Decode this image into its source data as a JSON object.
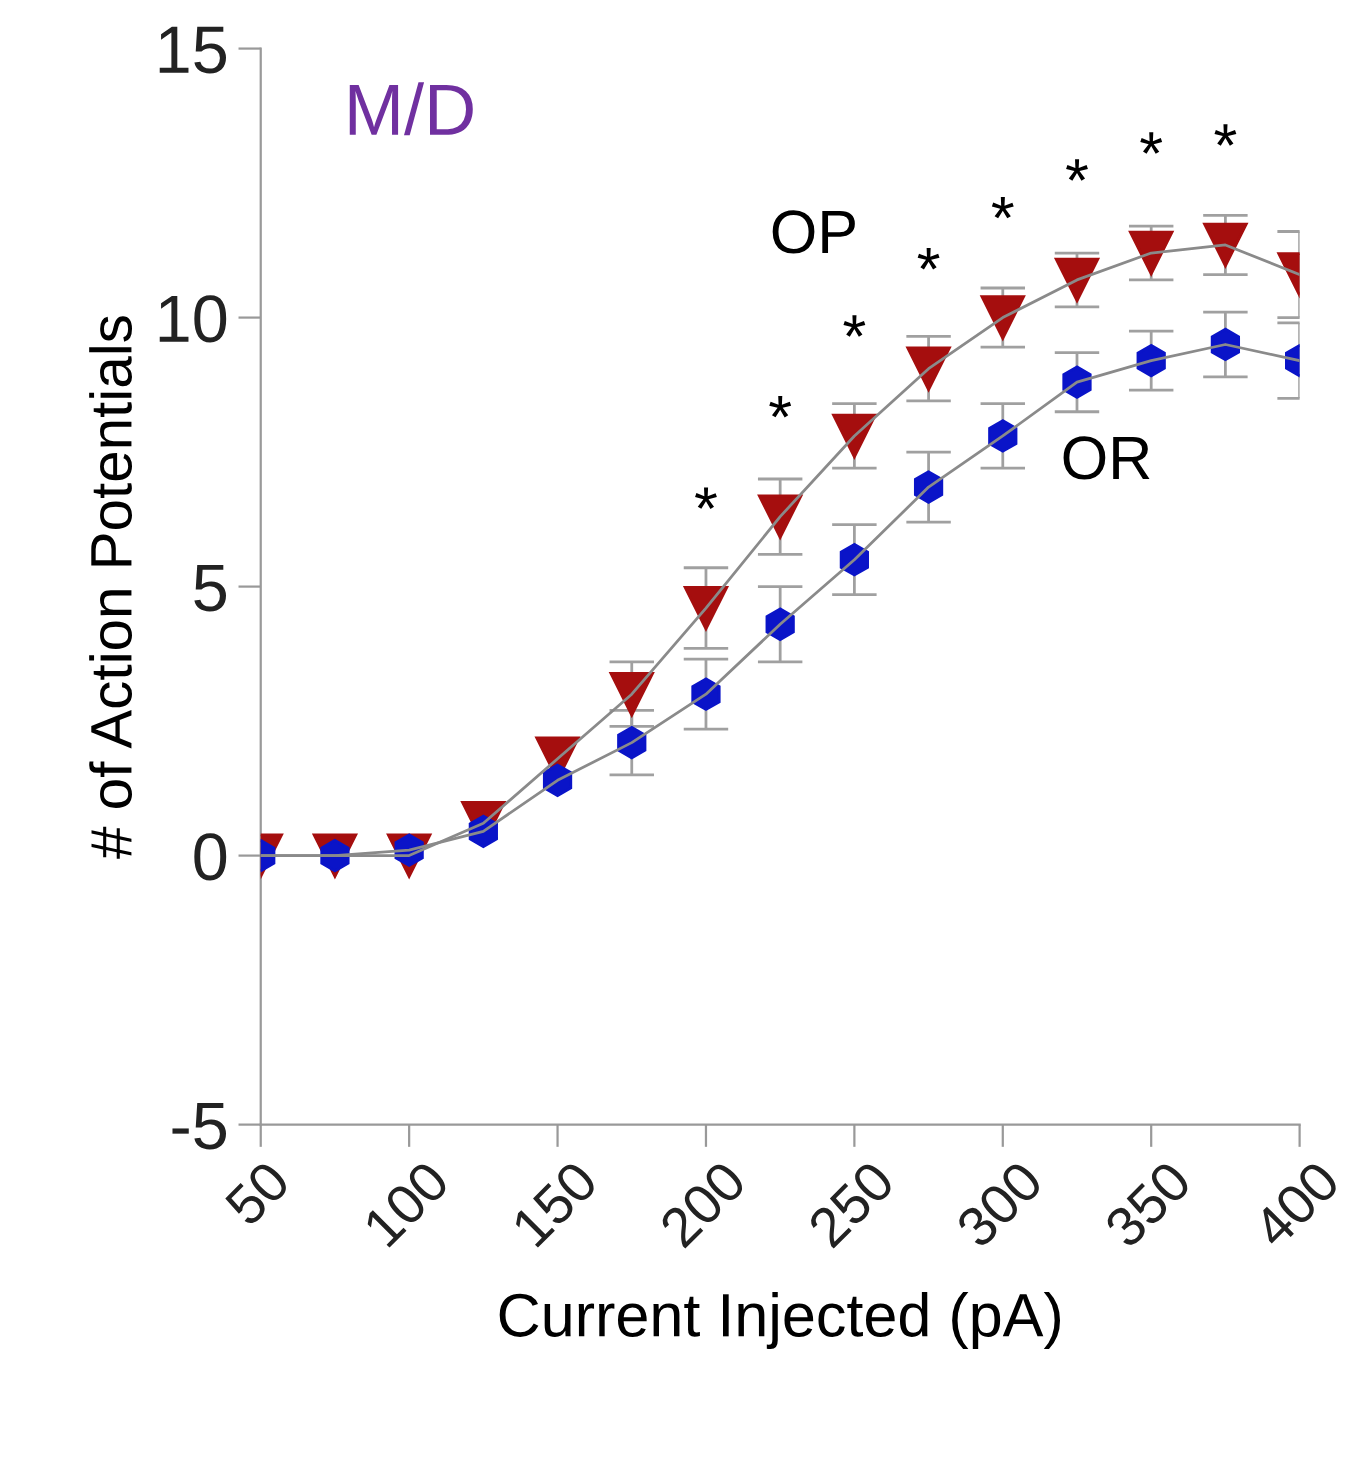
{
  "chart_data": {
    "type": "line",
    "xlabel": "Current Injected (pA)",
    "ylabel": "# of Action Potentials",
    "x": [
      50,
      75,
      100,
      125,
      150,
      175,
      200,
      225,
      250,
      275,
      300,
      325,
      350,
      375,
      400
    ],
    "xlim": [
      50,
      400
    ],
    "xticks": [
      50,
      100,
      150,
      200,
      250,
      300,
      350,
      400
    ],
    "ylim": [
      -5,
      15
    ],
    "yticks": [
      -5,
      0,
      5,
      10,
      15
    ],
    "series": [
      {
        "name": "OP",
        "color": "#a50e0e",
        "marker": "triangle",
        "values": [
          0,
          0,
          0,
          0.6,
          1.8,
          3.0,
          4.6,
          6.3,
          7.8,
          9.05,
          10.0,
          10.7,
          11.2,
          11.35,
          10.8
        ],
        "errors": [
          null,
          null,
          null,
          null,
          null,
          0.6,
          0.75,
          0.7,
          0.6,
          0.6,
          0.55,
          0.5,
          0.5,
          0.55,
          0.8
        ]
      },
      {
        "name": "OR",
        "color": "#0a14c8",
        "marker": "circle",
        "values": [
          0,
          0,
          0.1,
          0.45,
          1.4,
          2.1,
          3.0,
          4.3,
          5.5,
          6.85,
          7.8,
          8.8,
          9.2,
          9.5,
          9.2
        ],
        "errors": [
          null,
          null,
          null,
          null,
          null,
          0.6,
          0.65,
          0.7,
          0.65,
          0.65,
          0.6,
          0.55,
          0.55,
          0.6,
          0.7
        ]
      }
    ],
    "annotations": [
      {
        "text": "M/D"
      },
      {
        "text": "*",
        "x": 200,
        "y": 4.6
      },
      {
        "text": "*",
        "x": 225,
        "y": 6.3
      },
      {
        "text": "*",
        "x": 250,
        "y": 7.8
      },
      {
        "text": "*",
        "x": 275,
        "y": 9.05
      },
      {
        "text": "*",
        "x": 300,
        "y": 10.0
      },
      {
        "text": "*",
        "x": 325,
        "y": 10.7
      },
      {
        "text": "*",
        "x": 350,
        "y": 11.2
      },
      {
        "text": "*",
        "x": 375,
        "y": 11.35
      }
    ],
    "grid": false,
    "legend": false,
    "line_style": "solid"
  }
}
